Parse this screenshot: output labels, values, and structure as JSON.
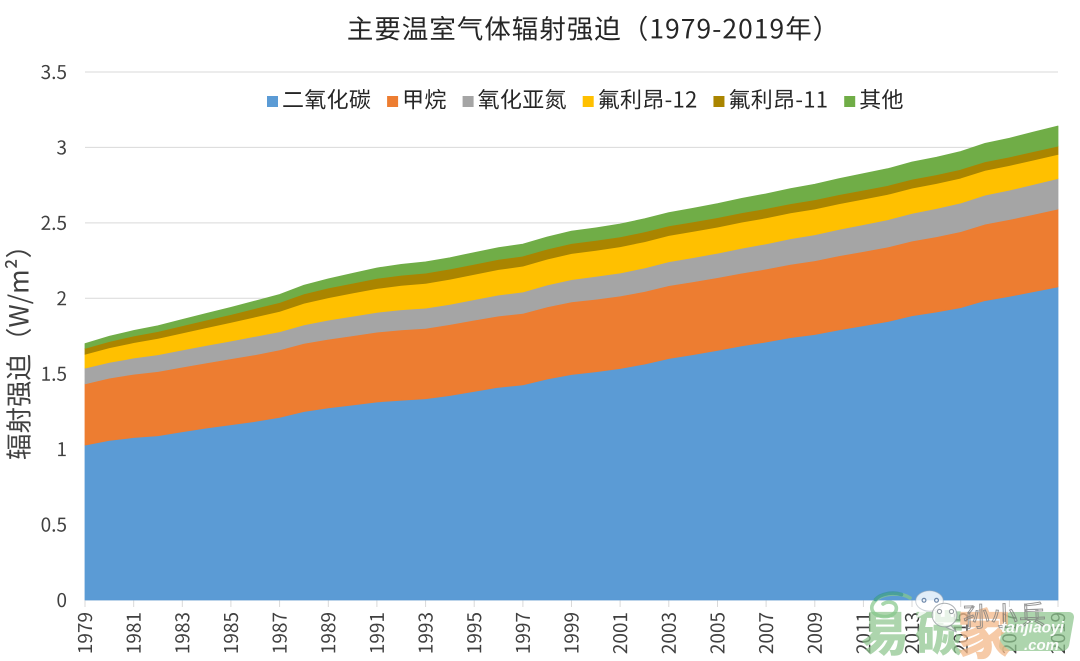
{
  "title": "主要温室气体辐射强迫（1979-2019年）",
  "y_axis": {
    "label": "辐射强迫（W/m²）",
    "tick_labels": [
      "0",
      "0.5",
      "1",
      "1.5",
      "2",
      "2.5",
      "3",
      "3.5"
    ]
  },
  "x_axis": {
    "tick_labels": [
      "1979",
      "1981",
      "1983",
      "1985",
      "1987",
      "1989",
      "1991",
      "1993",
      "1995",
      "1997",
      "1999",
      "2001",
      "2003",
      "2005",
      "2007",
      "2009",
      "2011",
      "2013",
      "2015",
      "2017",
      "2019"
    ]
  },
  "legend": [
    "二氧化碳",
    "甲烷",
    "氧化亚氮",
    "氟利昂-12",
    "氟利昂-11",
    "其他"
  ],
  "watermark": {
    "logo_char_1": "易",
    "logo_char_2": "碳",
    "logo_char_3": "家",
    "brand": "tanjiaoyi",
    "brand_tld": ".com",
    "signature": "孙小兵"
  },
  "colors": {
    "co2": "#5B9BD5",
    "ch4": "#ED7D31",
    "n2o": "#A5A5A5",
    "cfc12": "#FFC000",
    "cfc11": "#AA8500",
    "other": "#70AD47",
    "gridline": "#D9D9D9",
    "tick_text": "#404040",
    "title_text": "#262626"
  },
  "chart_data": {
    "type": "area",
    "stacked": true,
    "title": "主要温室气体辐射强迫（1979-2019年）",
    "ylabel": "辐射强迫（W/m²）",
    "xlabel": "",
    "ylim": [
      0,
      3.5
    ],
    "y_step": 0.5,
    "xlim": [
      1979,
      2019
    ],
    "grid": true,
    "legend_position": "top",
    "x": [
      1979,
      1980,
      1981,
      1982,
      1983,
      1984,
      1985,
      1986,
      1987,
      1988,
      1989,
      1990,
      1991,
      1992,
      1993,
      1994,
      1995,
      1996,
      1997,
      1998,
      1999,
      2000,
      2001,
      2002,
      2003,
      2004,
      2005,
      2006,
      2007,
      2008,
      2009,
      2010,
      2011,
      2012,
      2013,
      2014,
      2015,
      2016,
      2017,
      2018,
      2019
    ],
    "series": [
      {
        "name": "二氧化碳",
        "color": "#5B9BD5",
        "values": [
          1.027,
          1.058,
          1.077,
          1.089,
          1.115,
          1.14,
          1.162,
          1.184,
          1.211,
          1.25,
          1.274,
          1.293,
          1.313,
          1.324,
          1.334,
          1.356,
          1.383,
          1.41,
          1.426,
          1.465,
          1.495,
          1.513,
          1.535,
          1.564,
          1.601,
          1.627,
          1.655,
          1.685,
          1.71,
          1.739,
          1.76,
          1.791,
          1.818,
          1.846,
          1.884,
          1.909,
          1.938,
          1.985,
          2.013,
          2.044,
          2.076
        ]
      },
      {
        "name": "甲烷",
        "color": "#ED7D31",
        "values": [
          0.406,
          0.413,
          0.42,
          0.426,
          0.429,
          0.432,
          0.437,
          0.442,
          0.447,
          0.451,
          0.455,
          0.459,
          0.463,
          0.467,
          0.467,
          0.47,
          0.472,
          0.473,
          0.474,
          0.478,
          0.481,
          0.481,
          0.48,
          0.481,
          0.483,
          0.483,
          0.482,
          0.482,
          0.484,
          0.486,
          0.489,
          0.491,
          0.492,
          0.494,
          0.496,
          0.499,
          0.504,
          0.507,
          0.509,
          0.512,
          0.516
        ]
      },
      {
        "name": "氧化亚氮",
        "color": "#A5A5A5",
        "values": [
          0.104,
          0.104,
          0.107,
          0.111,
          0.113,
          0.116,
          0.118,
          0.122,
          0.12,
          0.123,
          0.126,
          0.129,
          0.131,
          0.133,
          0.134,
          0.134,
          0.136,
          0.139,
          0.142,
          0.145,
          0.148,
          0.151,
          0.153,
          0.156,
          0.158,
          0.16,
          0.162,
          0.165,
          0.167,
          0.17,
          0.172,
          0.175,
          0.178,
          0.181,
          0.183,
          0.187,
          0.19,
          0.192,
          0.195,
          0.199,
          0.202
        ]
      },
      {
        "name": "氟利昂-12",
        "color": "#FFC000",
        "values": [
          0.092,
          0.097,
          0.102,
          0.108,
          0.113,
          0.118,
          0.123,
          0.129,
          0.135,
          0.143,
          0.149,
          0.154,
          0.158,
          0.162,
          0.164,
          0.166,
          0.168,
          0.169,
          0.171,
          0.172,
          0.173,
          0.173,
          0.174,
          0.174,
          0.174,
          0.174,
          0.173,
          0.173,
          0.172,
          0.171,
          0.171,
          0.17,
          0.169,
          0.168,
          0.167,
          0.166,
          0.165,
          0.164,
          0.163,
          0.162,
          0.16
        ]
      },
      {
        "name": "氟利昂-11",
        "color": "#AA8500",
        "values": [
          0.039,
          0.042,
          0.044,
          0.046,
          0.048,
          0.05,
          0.053,
          0.056,
          0.059,
          0.062,
          0.064,
          0.065,
          0.067,
          0.067,
          0.068,
          0.068,
          0.067,
          0.067,
          0.067,
          0.066,
          0.066,
          0.066,
          0.065,
          0.065,
          0.064,
          0.063,
          0.063,
          0.062,
          0.062,
          0.061,
          0.061,
          0.06,
          0.06,
          0.059,
          0.059,
          0.058,
          0.058,
          0.057,
          0.057,
          0.056,
          0.055
        ]
      },
      {
        "name": "其他",
        "color": "#70AD47",
        "values": [
          0.031,
          0.034,
          0.036,
          0.038,
          0.041,
          0.044,
          0.047,
          0.049,
          0.053,
          0.057,
          0.061,
          0.065,
          0.069,
          0.072,
          0.074,
          0.075,
          0.077,
          0.078,
          0.079,
          0.08,
          0.082,
          0.083,
          0.085,
          0.087,
          0.088,
          0.09,
          0.092,
          0.095,
          0.097,
          0.1,
          0.103,
          0.106,
          0.109,
          0.111,
          0.114,
          0.116,
          0.118,
          0.122,
          0.124,
          0.129,
          0.133
        ]
      }
    ]
  }
}
